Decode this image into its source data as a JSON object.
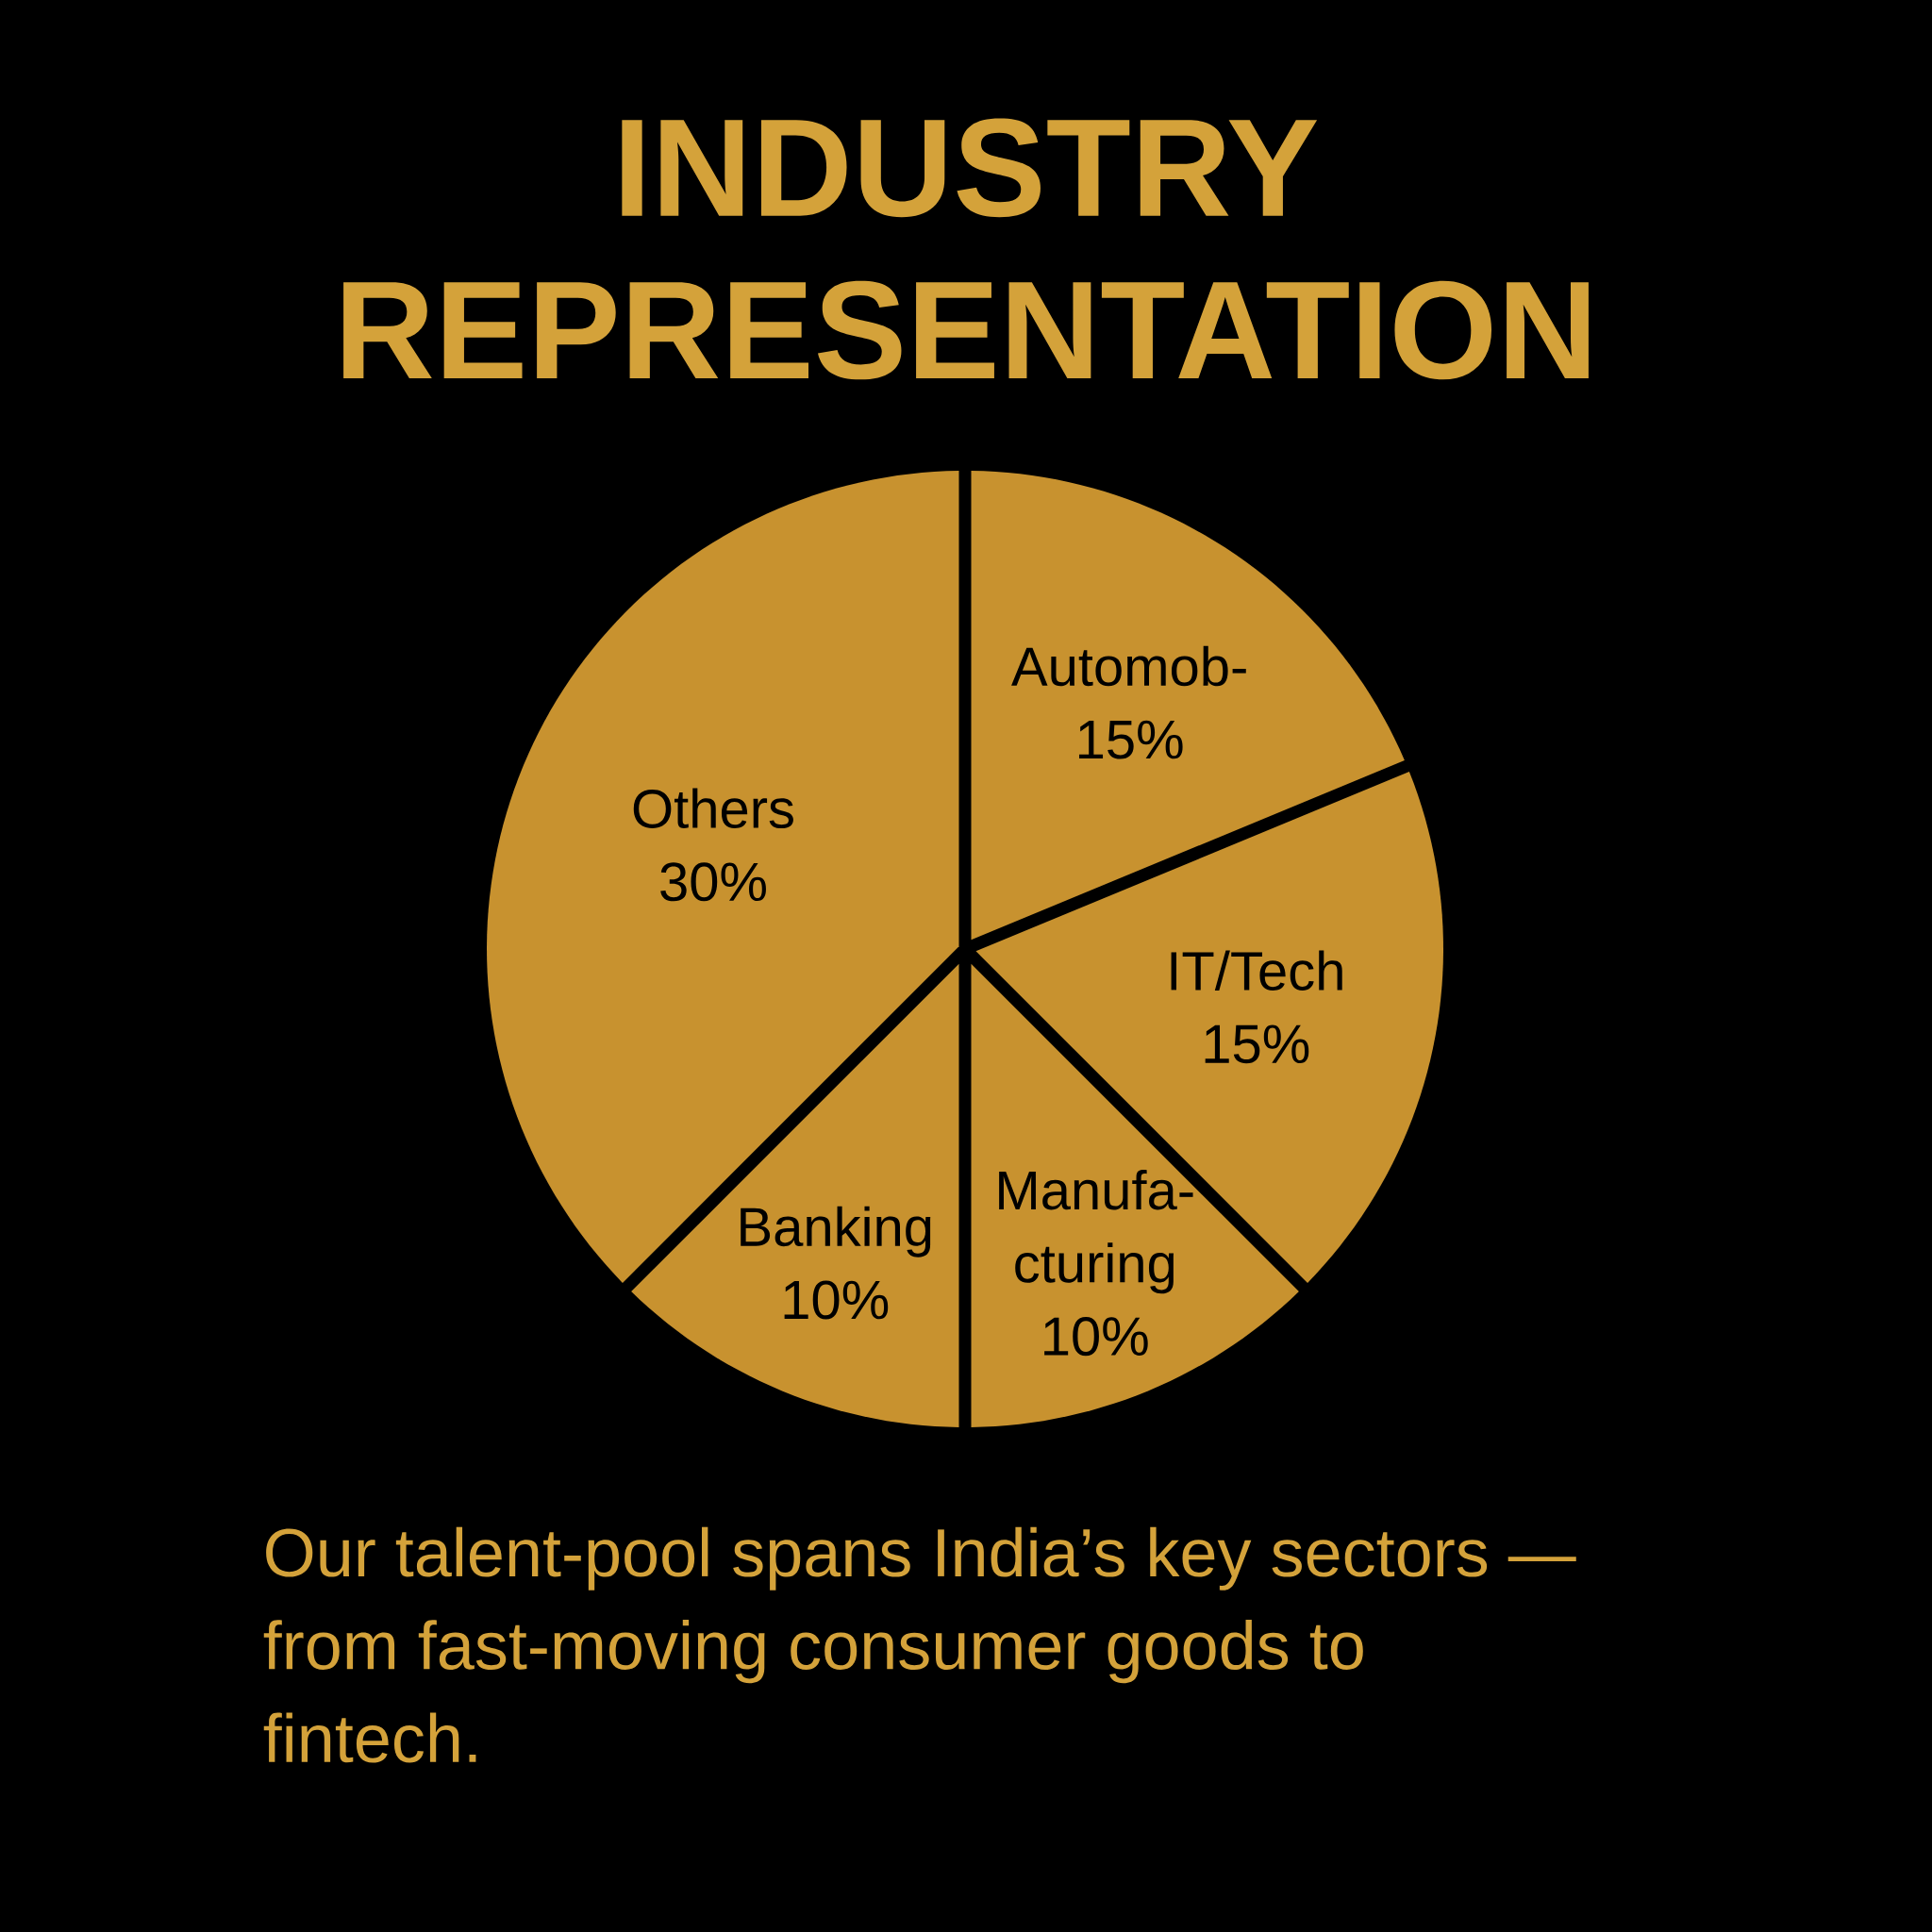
{
  "chart_data": {
    "type": "pie",
    "title": "INDUSTRY REPRESENTATION",
    "categories": [
      "Automob-",
      "IT/Tech",
      "Manufa-cturing",
      "Banking",
      "Others"
    ],
    "values": [
      15,
      15,
      10,
      10,
      30
    ],
    "colors": [
      "#c8922f",
      "#c8922f",
      "#c8922f",
      "#c8922f",
      "#c8922f"
    ],
    "value_labels": [
      "15%",
      "15%",
      "10%",
      "10%",
      "30%"
    ],
    "annotations": [
      "Our talent-pool spans India’s key sectors — from fast-moving consumer goods to fintech."
    ]
  }
}
